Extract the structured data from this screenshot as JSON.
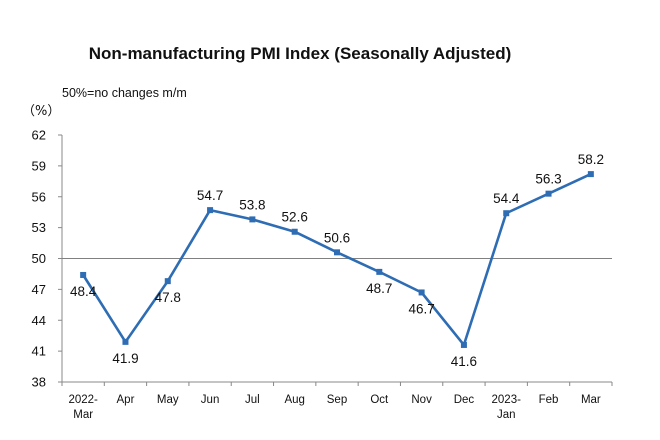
{
  "chart_data": {
    "type": "line",
    "title": "Non-manufacturing PMI Index (Seasonally Adjusted)",
    "note": "50%=no changes m/m",
    "ylabel": "（%）",
    "xlabel": "",
    "ylim": [
      38,
      62
    ],
    "yticks": [
      38,
      41,
      44,
      47,
      50,
      53,
      56,
      59,
      62
    ],
    "reference_line": 50,
    "grid": false,
    "legend": "none",
    "categories": [
      [
        "2022-",
        "Mar"
      ],
      [
        "Apr"
      ],
      [
        "May"
      ],
      [
        "Jun"
      ],
      [
        "Jul"
      ],
      [
        "Aug"
      ],
      [
        "Sep"
      ],
      [
        "Oct"
      ],
      [
        "Nov"
      ],
      [
        "Dec"
      ],
      [
        "2023-",
        "Jan"
      ],
      [
        "Feb"
      ],
      [
        "Mar"
      ]
    ],
    "series": [
      {
        "values": [
          48.4,
          41.9,
          47.8,
          54.7,
          53.8,
          52.6,
          50.6,
          48.7,
          46.7,
          41.6,
          54.4,
          56.3,
          58.2
        ],
        "labels": [
          "48.4",
          "41.9",
          "47.8",
          "54.7",
          "53.8",
          "52.6",
          "50.6",
          "48.7",
          "46.7",
          "41.6",
          "54.4",
          "56.3",
          "58.2"
        ],
        "label_positions": [
          "below",
          "below",
          "below",
          "above",
          "above",
          "above",
          "above",
          "below",
          "below",
          "below",
          "above",
          "above",
          "above"
        ]
      }
    ],
    "colors": {
      "line": "#2E6DB4",
      "marker": "#2E6DB4",
      "axis": "#888888",
      "reference": "#808080",
      "text": "#111111"
    }
  }
}
